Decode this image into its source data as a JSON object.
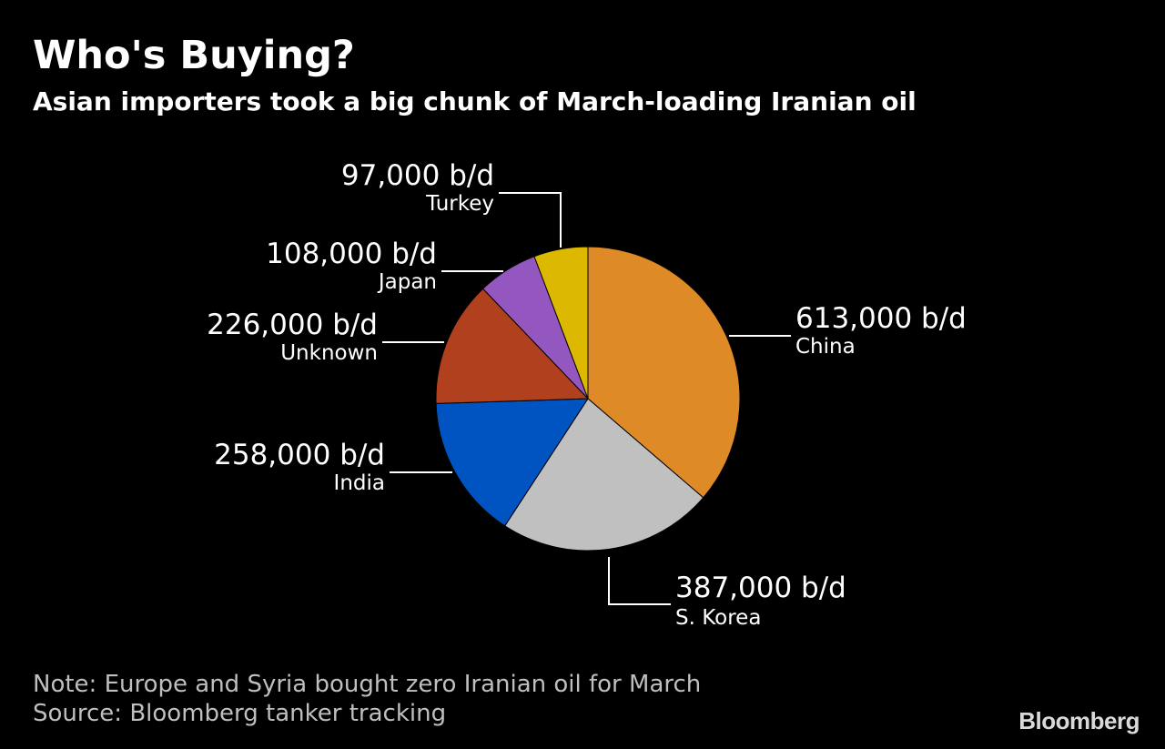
{
  "header": {
    "title": "Who's Buying?",
    "subtitle": "Asian importers took a big chunk of March-loading Iranian oil"
  },
  "footer": {
    "note": "Note: Europe and Syria bought zero Iranian oil for March",
    "source": "Source: Bloomberg tanker tracking",
    "brand": "Bloomberg"
  },
  "chart_data": {
    "type": "pie",
    "unit": "b/d",
    "start": "12 o'clock",
    "direction": "clockwise",
    "slices": [
      {
        "name": "China",
        "value": 613000,
        "label": "613,000 b/d",
        "color": "#DE8A26"
      },
      {
        "name": "S. Korea",
        "value": 387000,
        "label": "387,000 b/d",
        "color": "#C0C0C0"
      },
      {
        "name": "India",
        "value": 258000,
        "label": "258,000 b/d",
        "color": "#0054C2"
      },
      {
        "name": "Unknown",
        "value": 226000,
        "label": "226,000 b/d",
        "color": "#B1401E"
      },
      {
        "name": "Japan",
        "value": 108000,
        "label": "108,000 b/d",
        "color": "#9457BF"
      },
      {
        "name": "Turkey",
        "value": 97000,
        "label": "97,000 b/d",
        "color": "#DCB800"
      }
    ]
  }
}
